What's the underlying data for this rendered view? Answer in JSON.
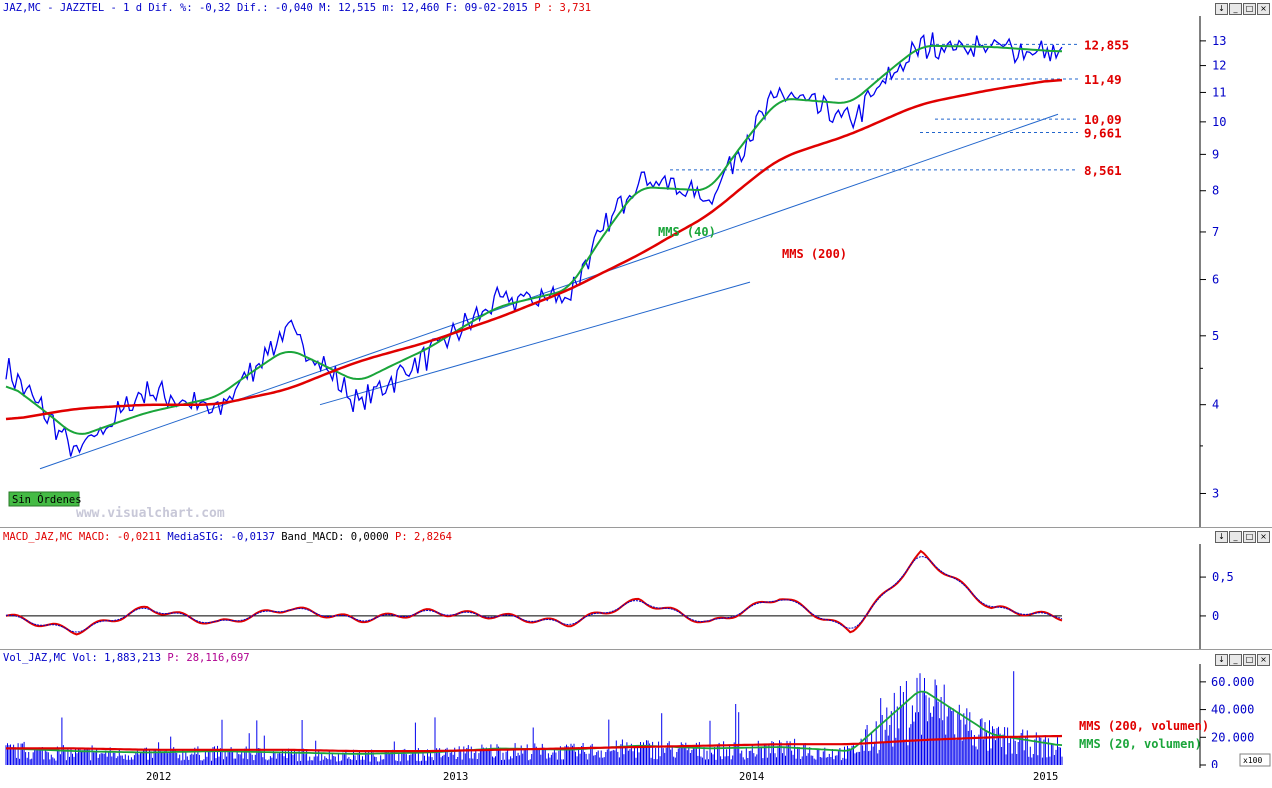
{
  "price_panel": {
    "symbol": "JAZ,MC",
    "name": "JAZZTEL",
    "header_fields": [
      {
        "k": "1 d Dif. %:",
        "v": "-0,32"
      },
      {
        "k": "Dif.:",
        "v": "-0,040"
      },
      {
        "k": "M:",
        "v": "12,515"
      },
      {
        "k": "m:",
        "v": "12,460"
      },
      {
        "k": "F:",
        "v": "09-02-2015"
      }
    ],
    "p_label": "P :",
    "p_value": "3,731",
    "watermark": "www.visualchart.com",
    "status_badge": "Sin Órdenes",
    "mms40_label": "MMS (40)",
    "mms200_label": "MMS (200)",
    "levels": [
      "12,855",
      "11,49",
      "10,09",
      "9,661",
      "8,561"
    ],
    "y_ticks": [
      "3",
      "4",
      "5",
      "6",
      "7",
      "8",
      "9",
      "10",
      "11",
      "12",
      "13"
    ]
  },
  "macd_panel": {
    "header_name": "MACD_JAZ,MC",
    "fields": [
      {
        "k": "MACD:",
        "v": "-0,0211"
      },
      {
        "k": "MediaSIG:",
        "v": "-0,0137"
      },
      {
        "k": "Band_MACD:",
        "v": "0,0000"
      }
    ],
    "p_label": "P:",
    "p_value": "2,8264",
    "y_ticks": [
      "0,5",
      "0"
    ]
  },
  "volume_panel": {
    "header_name": "Vol_JAZ,MC",
    "fields": [
      {
        "k": "Vol:",
        "v": "1,883,213"
      }
    ],
    "p_label": "P:",
    "p_value": "28,116,697",
    "legend_200": "MMS (200, volumen)",
    "legend_20": "MMS (20, volumen)",
    "y_ticks": [
      "60.000",
      "40.000",
      "20.000",
      "0"
    ],
    "scale_badge": "x100"
  },
  "x_axis": {
    "labels": [
      "2012",
      "2013",
      "2014",
      "2015"
    ]
  },
  "window_buttons": [
    "↓",
    "_",
    "□",
    "×"
  ],
  "colors": {
    "price": "#0000ee",
    "mms40": "#1aa53a",
    "mms200": "#e00000",
    "trend": "#2266cc",
    "level_text": "#e00000",
    "badge": "#44bb44"
  },
  "chart_data": [
    {
      "type": "line",
      "title": "JAZ,MC - JAZZTEL",
      "ylog": true,
      "ylim": [
        2.7,
        14
      ],
      "x": [
        "2011-06",
        "2011-09",
        "2011-12",
        "2012-03",
        "2012-06",
        "2012-09",
        "2012-12",
        "2013-03",
        "2013-06",
        "2013-09",
        "2013-12",
        "2014-03",
        "2014-06",
        "2014-09",
        "2014-11",
        "2015-02"
      ],
      "series": [
        {
          "name": "",
          "values": [
            4.5,
            3.4,
            4.2,
            3.9,
            5.1,
            4.0,
            4.7,
            5.6,
            5.7,
            8.4,
            7.8,
            11.0,
            10.0,
            12.8,
            12.75,
            12.46
          ]
        },
        {
          "name": "MMS (40)",
          "values": [
            4.3,
            3.6,
            3.9,
            4.1,
            4.8,
            4.3,
            4.8,
            5.5,
            5.8,
            8.1,
            8.0,
            10.8,
            10.6,
            12.8,
            12.75,
            12.55
          ]
        },
        {
          "name": "MMS (200)",
          "values": [
            3.8,
            3.95,
            4.0,
            4.0,
            4.2,
            4.6,
            4.9,
            5.3,
            5.8,
            6.5,
            7.4,
            8.9,
            9.6,
            10.6,
            11.1,
            11.5
          ]
        }
      ],
      "levels": [
        12.855,
        11.49,
        10.09,
        9.661,
        8.561
      ]
    },
    {
      "type": "line",
      "title": "MACD_JAZ,MC",
      "ylim": [
        -0.4,
        0.9
      ],
      "x": [
        "2011-06",
        "2011-09",
        "2011-12",
        "2012-03",
        "2012-06",
        "2012-09",
        "2012-12",
        "2013-03",
        "2013-06",
        "2013-09",
        "2013-12",
        "2014-03",
        "2014-06",
        "2014-09",
        "2014-11",
        "2015-02"
      ],
      "series": [
        {
          "name": "MACD",
          "values": [
            0.0,
            -0.2,
            0.1,
            -0.1,
            0.1,
            -0.05,
            0.05,
            0.0,
            -0.1,
            0.2,
            -0.1,
            0.25,
            -0.2,
            0.8,
            0.1,
            -0.02
          ]
        },
        {
          "name": "MediaSIG",
          "values": [
            0.0,
            -0.18,
            0.08,
            -0.08,
            0.09,
            -0.04,
            0.04,
            0.0,
            -0.08,
            0.18,
            -0.08,
            0.23,
            -0.17,
            0.7,
            0.15,
            -0.01
          ]
        }
      ]
    },
    {
      "type": "bar",
      "title": "Vol_JAZ,MC",
      "ylim": [
        0,
        70000
      ],
      "x": [
        "2011-06",
        "2011-09",
        "2011-12",
        "2012-03",
        "2012-06",
        "2012-09",
        "2012-12",
        "2013-03",
        "2013-06",
        "2013-09",
        "2013-12",
        "2014-03",
        "2014-06",
        "2014-09",
        "2014-11",
        "2015-02"
      ],
      "series": [
        {
          "name": "MMS (200, volumen)",
          "values": [
            12000,
            12000,
            11000,
            11000,
            11000,
            10000,
            10000,
            11000,
            12000,
            13000,
            14000,
            15000,
            15000,
            18000,
            20000,
            21000
          ]
        },
        {
          "name": "MMS (20, volumen)",
          "values": [
            12000,
            10000,
            9000,
            10000,
            9000,
            8000,
            9000,
            12000,
            11000,
            14000,
            12000,
            13000,
            10000,
            55000,
            22000,
            14000
          ]
        }
      ]
    }
  ]
}
